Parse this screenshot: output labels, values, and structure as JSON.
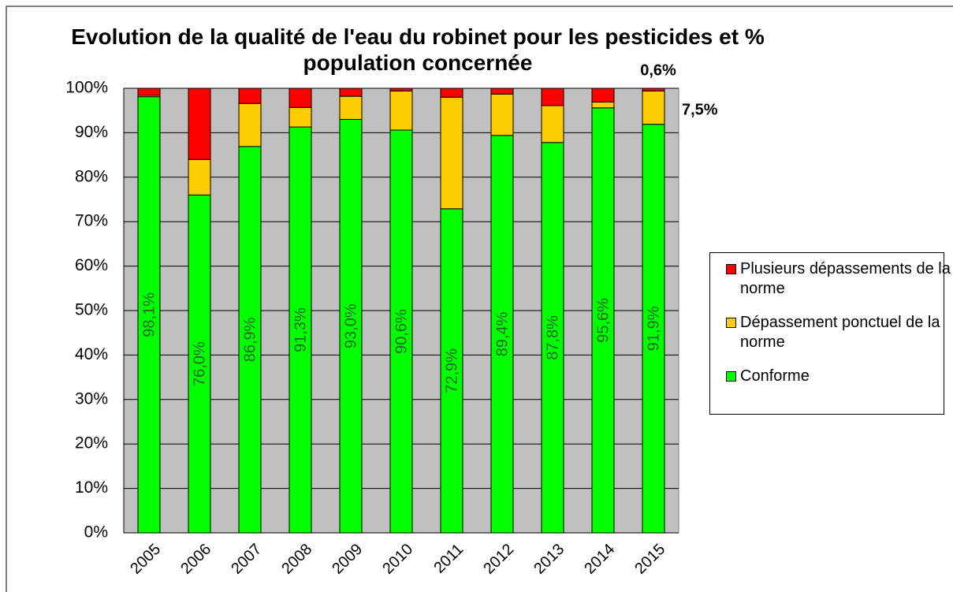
{
  "chart_data": {
    "type": "stacked_bar",
    "title": "Evolution de la qualité de l'eau du robinet pour les pesticides et % population concernée",
    "categories": [
      "2005",
      "2006",
      "2007",
      "2008",
      "2009",
      "2010",
      "2011",
      "2012",
      "2013",
      "2014",
      "2015"
    ],
    "series": [
      {
        "name": "Conforme",
        "color": "#00ff00",
        "values": [
          98.1,
          76.0,
          86.9,
          91.3,
          93.0,
          90.6,
          72.9,
          89.4,
          87.8,
          95.6,
          91.9
        ],
        "value_labels": [
          "98,1%",
          "76,0%",
          "86,9%",
          "91,3%",
          "93,0%",
          "90,6%",
          "72,9%",
          "89,4%",
          "87,8%",
          "95,6%",
          "91,9%"
        ]
      },
      {
        "name": "Dépassement ponctuel de la norme",
        "color": "#ffcc00",
        "values": [
          0.3,
          8.0,
          9.7,
          4.4,
          5.2,
          8.8,
          25.1,
          9.3,
          8.3,
          1.3,
          7.5
        ],
        "value_labels": [
          null,
          null,
          null,
          null,
          null,
          null,
          null,
          null,
          null,
          null,
          "7,5%"
        ]
      },
      {
        "name": "Plusieurs dépassements de la norme",
        "color": "#ff0000",
        "values": [
          1.6,
          16.0,
          3.4,
          4.3,
          1.8,
          0.6,
          2.0,
          1.3,
          3.9,
          3.1,
          0.6
        ],
        "value_labels": [
          null,
          null,
          null,
          null,
          null,
          null,
          null,
          null,
          null,
          null,
          "0,6%"
        ]
      }
    ],
    "ylim": [
      0,
      100
    ],
    "yticks": [
      {
        "value": 0,
        "label": "0%"
      },
      {
        "value": 10,
        "label": "10%"
      },
      {
        "value": 20,
        "label": "20%"
      },
      {
        "value": 30,
        "label": "30%"
      },
      {
        "value": 40,
        "label": "40%"
      },
      {
        "value": 50,
        "label": "50%"
      },
      {
        "value": 60,
        "label": "60%"
      },
      {
        "value": 70,
        "label": "70%"
      },
      {
        "value": 80,
        "label": "80%"
      },
      {
        "value": 90,
        "label": "90%"
      },
      {
        "value": 100,
        "label": "100%"
      }
    ],
    "grid": true,
    "legend": "right"
  }
}
